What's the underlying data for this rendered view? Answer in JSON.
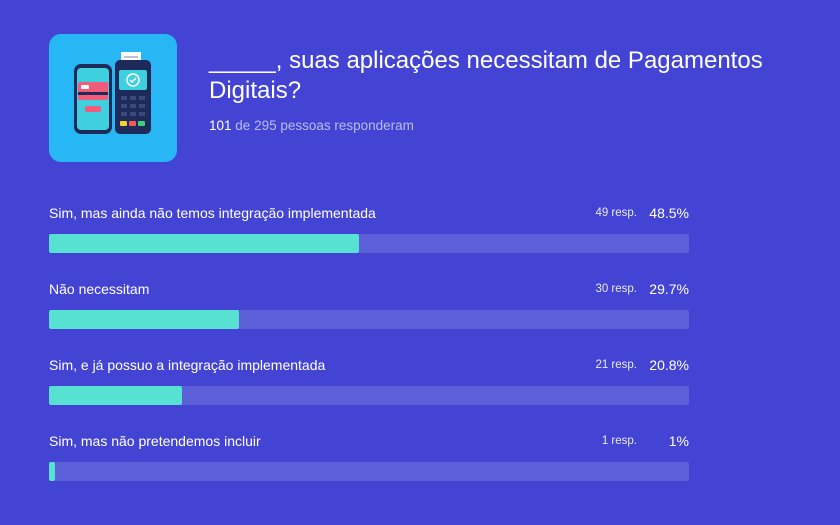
{
  "question": {
    "blank": "_____",
    "text": ", suas aplicações necessitam de Pagamentos Digitais?",
    "responded_count": "101",
    "responded_text": "de 295 pessoas responderam"
  },
  "options": [
    {
      "label": "Sim, mas ainda não temos integração implementada",
      "count": "49 resp.",
      "percent": "48.5%",
      "fraction": 0.485
    },
    {
      "label": "Não necessitam",
      "count": "30 resp.",
      "percent": "29.7%",
      "fraction": 0.297
    },
    {
      "label": "Sim, e já possuo a integração implementada",
      "count": "21 resp.",
      "percent": "20.8%",
      "fraction": 0.208
    },
    {
      "label": "Sim, mas não pretendemos incluir",
      "count": "1 resp.",
      "percent": "1%",
      "fraction": 0.01
    }
  ],
  "colors": {
    "background": "#4444d4",
    "bar_fill": "#56e1d2",
    "bar_track": "#5b5fd8",
    "thumbnail": "#27b7f5"
  },
  "thumbnail_icon": "phone-and-card-terminal-illustration"
}
